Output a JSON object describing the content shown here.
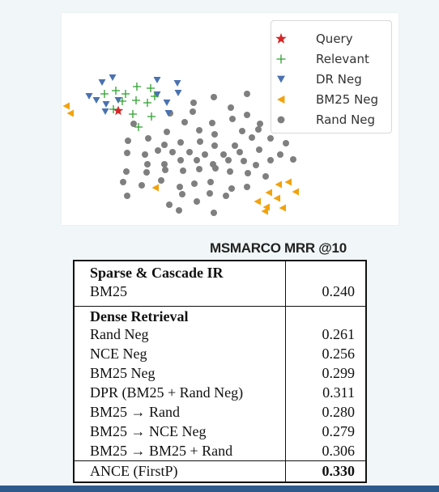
{
  "legend": [
    {
      "label": "Query",
      "marker": "star",
      "color": "#d62728"
    },
    {
      "label": "Relevant",
      "marker": "plus",
      "color": "#2ca02c"
    },
    {
      "label": "DR Neg",
      "marker": "triangle-down",
      "color": "#4a72b0"
    },
    {
      "label": "BM25 Neg",
      "marker": "triangle-left",
      "color": "#f2a20c"
    },
    {
      "label": "Rand Neg",
      "marker": "circle",
      "color": "#7f7f7f"
    }
  ],
  "caption": "MSMARCO MRR @10",
  "table": {
    "section1": {
      "header": "Sparse & Cascade IR",
      "rows": [
        {
          "name": "BM25",
          "value": "0.240"
        }
      ]
    },
    "section2": {
      "header": "Dense Retrieval",
      "rows": [
        {
          "name": "Rand Neg",
          "value": "0.261"
        },
        {
          "name": "NCE Neg",
          "value": "0.256"
        },
        {
          "name": "BM25 Neg",
          "value": "0.299"
        },
        {
          "name": "DPR (BM25 + Rand Neg)",
          "value": "0.311"
        },
        {
          "name": "BM25 → Rand",
          "value": "0.280"
        },
        {
          "name": "BM25 → NCE Neg",
          "value": "0.279"
        },
        {
          "name": "BM25 → BM25 + Rand",
          "value": "0.306"
        }
      ]
    },
    "final": {
      "name": "ANCE (FirstP)",
      "value": "0.330"
    }
  }
}
